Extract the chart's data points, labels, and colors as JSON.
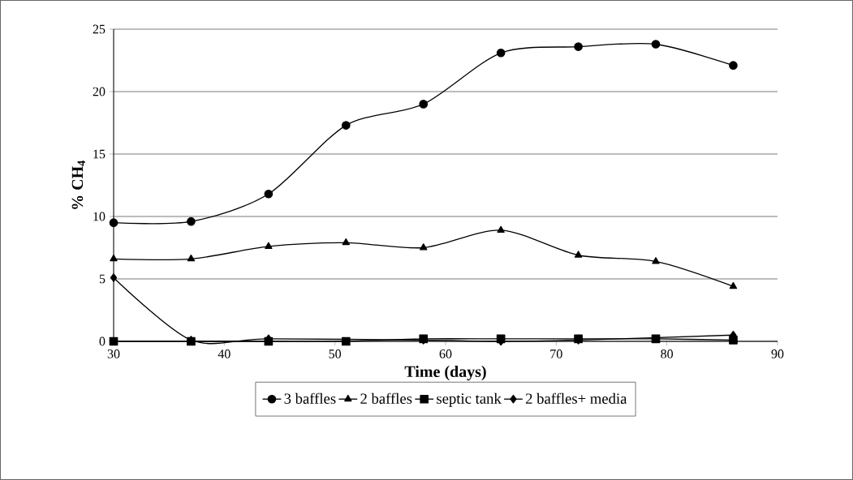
{
  "chart_data": {
    "type": "line",
    "xlabel": "Time (days)",
    "ylabel": "% CH$_{4}$",
    "x": [
      30,
      37,
      44,
      51,
      58,
      65,
      72,
      79,
      86
    ],
    "series": [
      {
        "name": "3 baffles",
        "color": "#000000",
        "marker": "circle",
        "values": [
          9.5,
          9.6,
          11.8,
          17.3,
          19.0,
          23.1,
          23.6,
          23.8,
          22.1
        ]
      },
      {
        "name": "2 baffles",
        "color": "#000000",
        "marker": "triangle",
        "values": [
          6.6,
          6.6,
          7.6,
          7.9,
          7.5,
          8.9,
          6.9,
          6.4,
          4.4
        ]
      },
      {
        "name": "septic tank",
        "color": "#000000",
        "marker": "square",
        "values": [
          0,
          0,
          0,
          0,
          0.2,
          0.2,
          0.2,
          0.2,
          0.1
        ]
      },
      {
        "name": "2 baffles+ media",
        "color": "#000000",
        "marker": "diamond",
        "values": [
          5.1,
          0.1,
          0.2,
          null,
          0.1,
          0,
          0.1,
          null,
          0.5
        ]
      }
    ],
    "xlim": [
      30,
      90
    ],
    "xticks": [
      30,
      40,
      50,
      60,
      70,
      80,
      90
    ],
    "ylim": [
      0,
      25
    ],
    "yticks": [
      0,
      5,
      10,
      15,
      20,
      25
    ],
    "grid": "y",
    "legend": "bottom",
    "line_style": "solid"
  }
}
